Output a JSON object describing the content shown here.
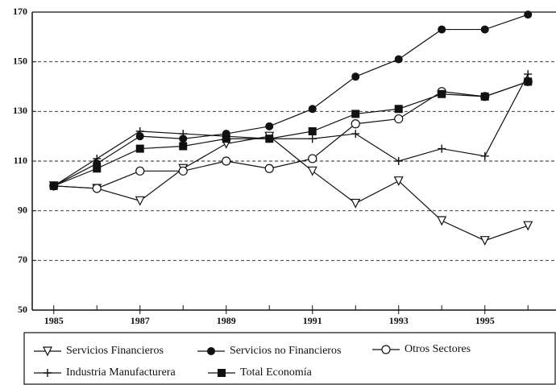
{
  "chart_data": {
    "type": "line",
    "x": [
      1985,
      1986,
      1987,
      1988,
      1989,
      1990,
      1991,
      1992,
      1993,
      1994,
      1995,
      1996
    ],
    "series": [
      {
        "name": "Servicios Financieros",
        "color": "#111111",
        "marker": "triangle-down-open",
        "values": [
          100,
          99,
          94,
          107,
          117,
          120,
          106,
          93,
          102,
          86,
          78,
          84
        ]
      },
      {
        "name": "Servicios no Financieros",
        "color": "#111111",
        "marker": "circle-filled",
        "values": [
          100,
          109,
          120,
          119,
          121,
          124,
          131,
          144,
          151,
          163,
          163,
          169
        ]
      },
      {
        "name": "Otros Sectores",
        "color": "#111111",
        "marker": "circle-open",
        "values": [
          100,
          99,
          106,
          106,
          110,
          107,
          111,
          125,
          127,
          138,
          136,
          142
        ]
      },
      {
        "name": "Industria Manufacturera",
        "color": "#111111",
        "marker": "plus",
        "values": [
          100,
          111,
          122,
          121,
          120,
          119,
          119,
          121,
          110,
          115,
          112,
          145
        ]
      },
      {
        "name": "Total Economía",
        "color": "#111111",
        "marker": "square-filled",
        "values": [
          100,
          107,
          115,
          116,
          119,
          119,
          122,
          129,
          131,
          137,
          136,
          142
        ]
      }
    ],
    "xlim": [
      1984.5,
      1996.65
    ],
    "xticks": [
      1985,
      1987,
      1989,
      1991,
      1993,
      1995
    ],
    "ylim": [
      50,
      170
    ],
    "yticks": [
      50,
      70,
      90,
      110,
      130,
      150,
      170
    ],
    "grid": true
  }
}
